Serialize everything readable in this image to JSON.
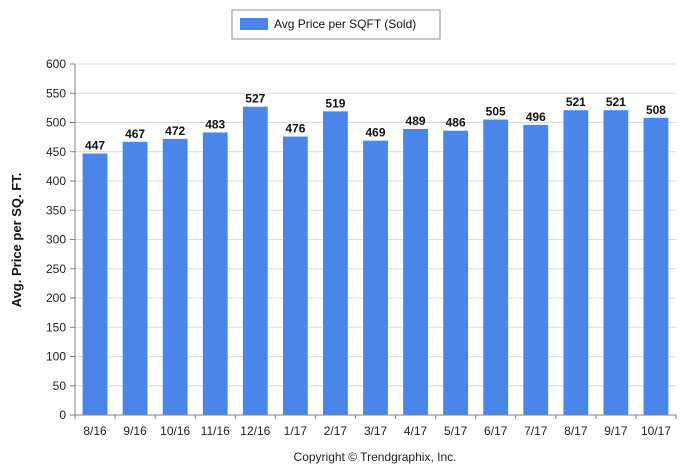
{
  "chart_data": {
    "type": "bar",
    "categories": [
      "8/16",
      "9/16",
      "10/16",
      "11/16",
      "12/16",
      "1/17",
      "2/17",
      "3/17",
      "4/17",
      "5/17",
      "6/17",
      "7/17",
      "8/17",
      "9/17",
      "10/17"
    ],
    "series": [
      {
        "name": "Avg Price per SQFT (Sold)",
        "values": [
          447,
          467,
          472,
          483,
          527,
          476,
          519,
          469,
          489,
          486,
          505,
          496,
          521,
          521,
          508
        ],
        "color": "#4a86e8"
      }
    ],
    "data_labels": [
      "447",
      "467",
      "472",
      "483",
      "527",
      "476",
      "519",
      "469",
      "489",
      "486",
      "505",
      "496",
      "521",
      "521",
      "508"
    ],
    "ylabel": "Avg. Price per SQ. FT.",
    "xlabel": "",
    "ylim": [
      0,
      600
    ],
    "yticks": [
      "0",
      "50",
      "100",
      "150",
      "200",
      "250",
      "300",
      "350",
      "400",
      "450",
      "500",
      "550",
      "600"
    ],
    "grid": true,
    "legend_position": "top-center"
  },
  "footer": {
    "copyright": "Copyright © Trendgraphix, Inc."
  }
}
